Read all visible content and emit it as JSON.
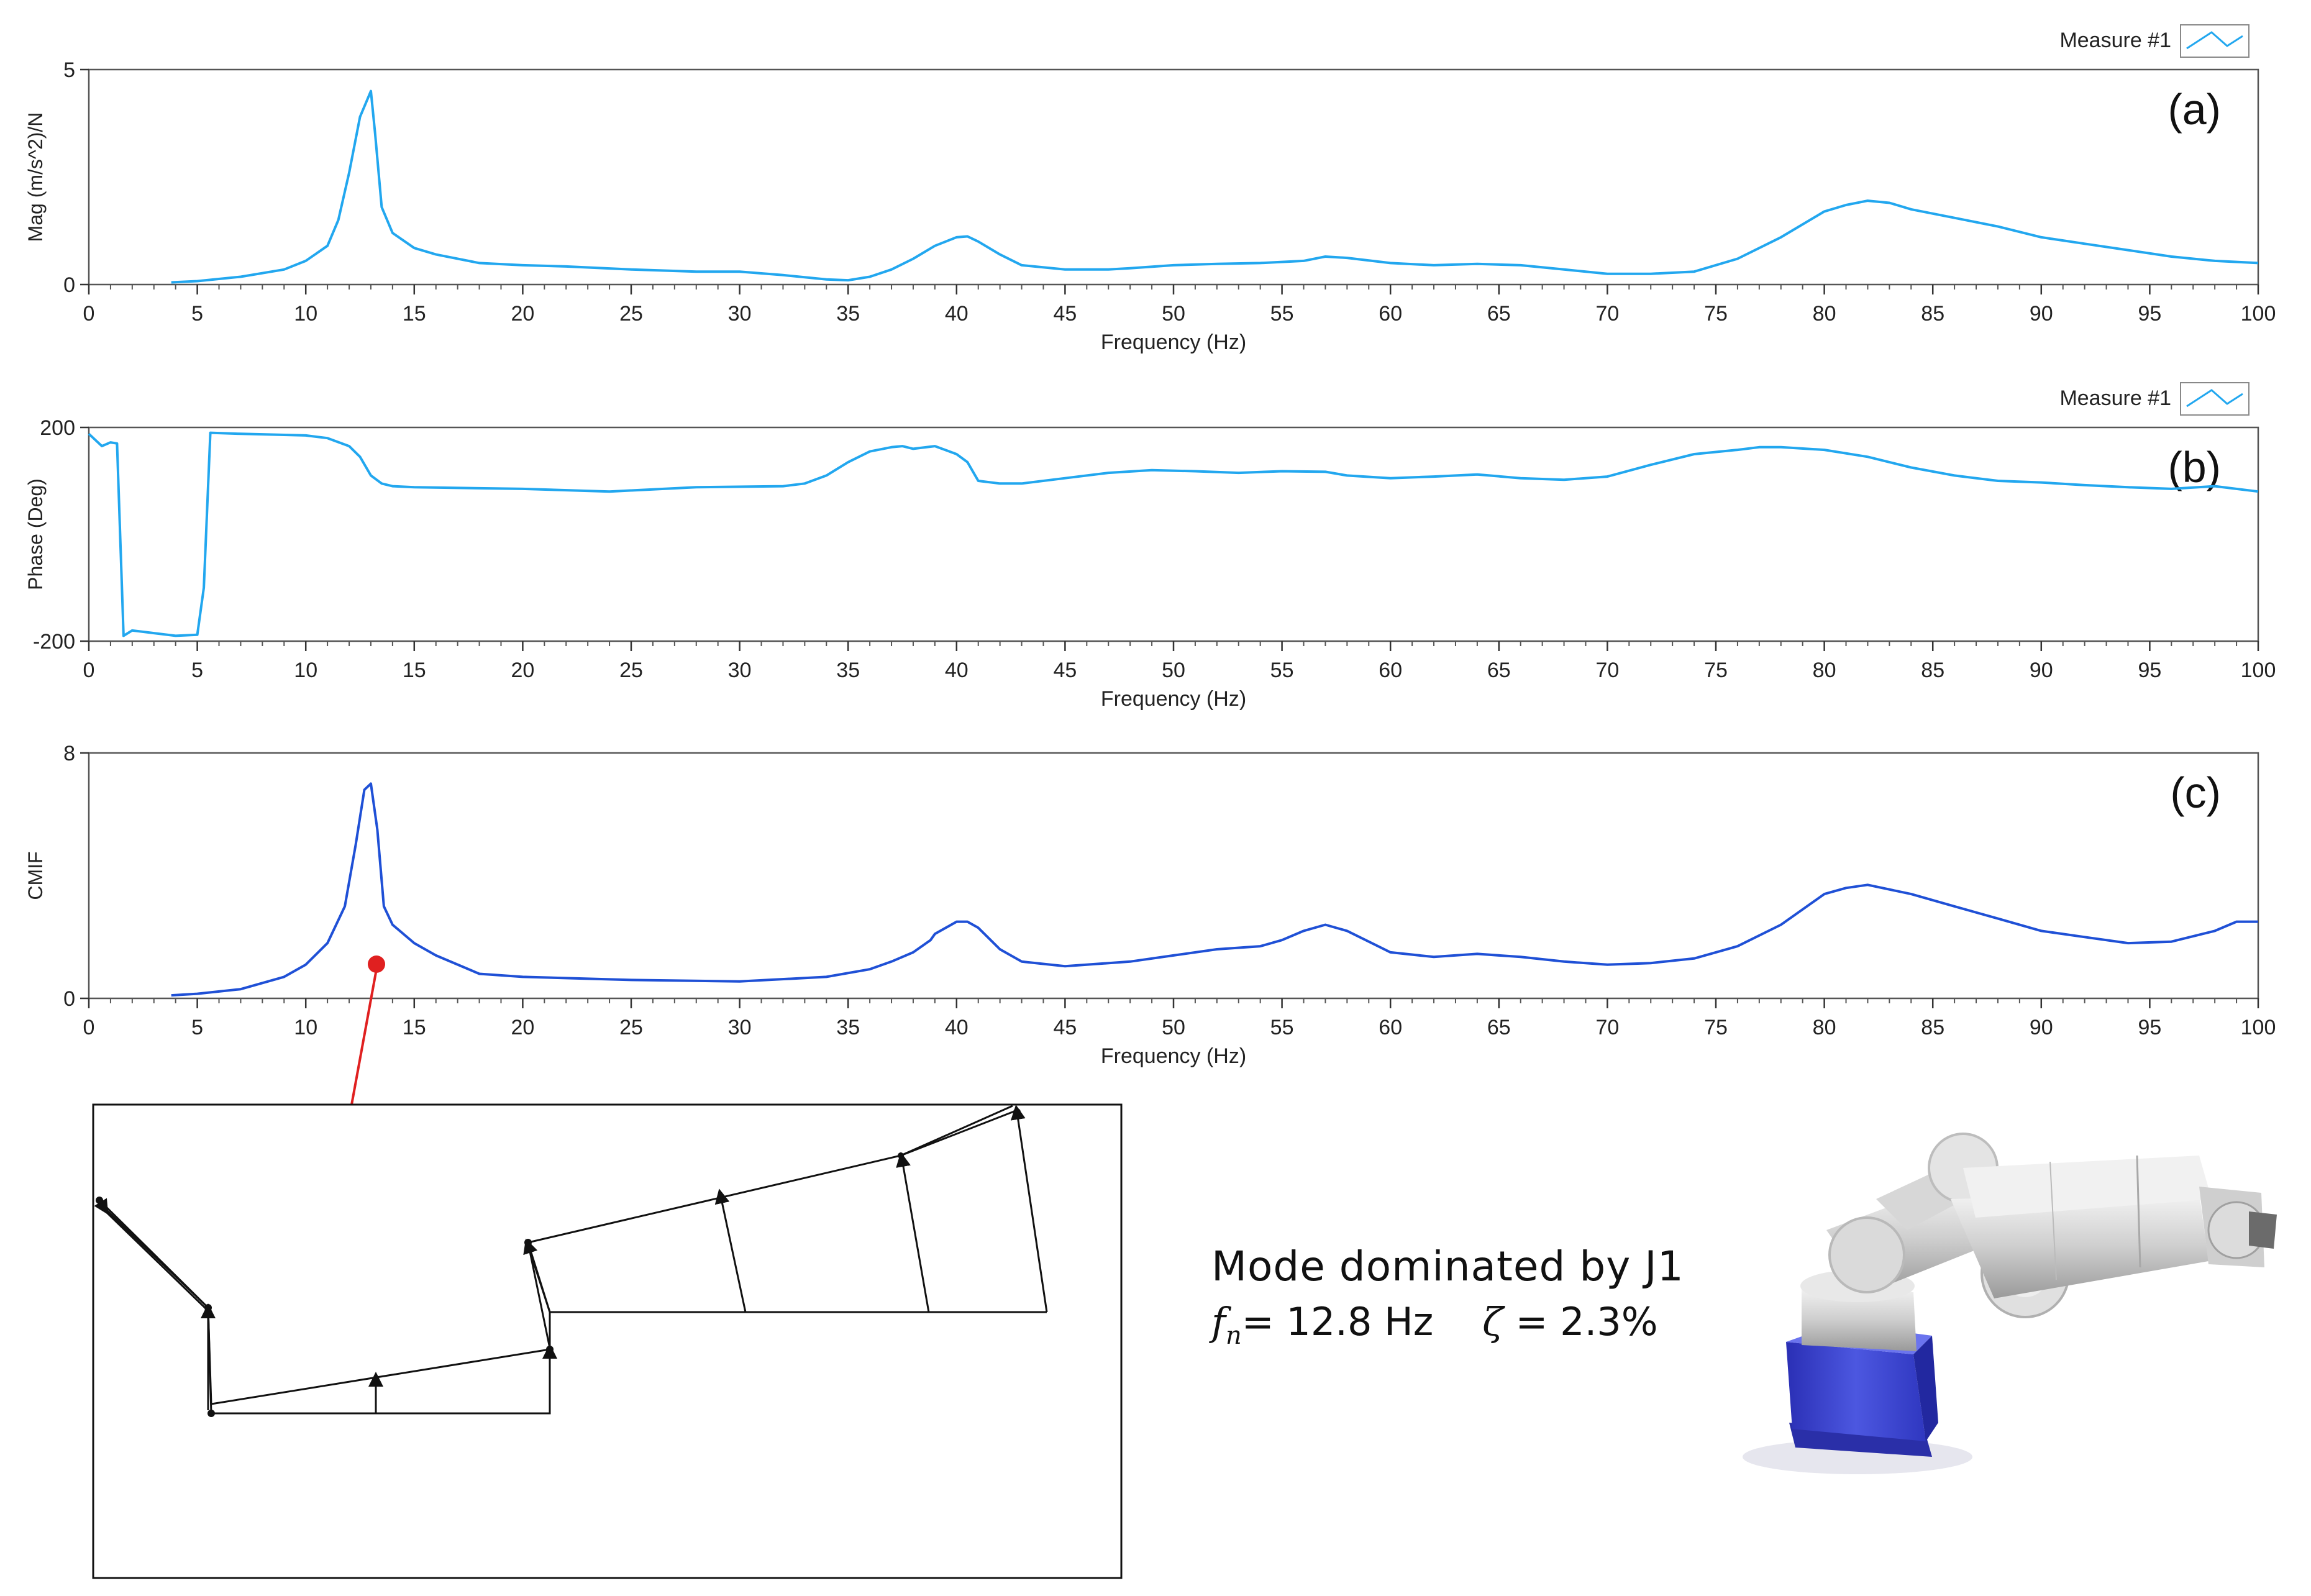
{
  "chart_data": [
    {
      "type": "line",
      "panel_label": "(a)",
      "xlabel": "Frequency (Hz)",
      "ylabel": "Mag  (m/s^2)/N",
      "xlim": [
        0,
        100
      ],
      "ylim": [
        0,
        5
      ],
      "x_ticks": [
        "0",
        "5",
        "10",
        "15",
        "20",
        "25",
        "30",
        "35",
        "40",
        "45",
        "50",
        "55",
        "60",
        "65",
        "70",
        "75",
        "80",
        "85",
        "90",
        "95",
        "100"
      ],
      "y_ticks": [
        "0",
        "5"
      ],
      "legend": {
        "label": "Measure #1",
        "position": "top-right"
      },
      "color": "#22a7ef",
      "series": [
        {
          "name": "Measure #1",
          "x": [
            3.8,
            5,
            7,
            9,
            10,
            11,
            11.5,
            12,
            12.5,
            13,
            13.2,
            13.5,
            14,
            15,
            16,
            18,
            20,
            22,
            25,
            28,
            30,
            32,
            34,
            35,
            36,
            37,
            38,
            39,
            40,
            40.5,
            41,
            42,
            43,
            45,
            47,
            48,
            50,
            52,
            54,
            56,
            57,
            58,
            60,
            62,
            64,
            66,
            68,
            70,
            72,
            74,
            76,
            78,
            80,
            81,
            82,
            83,
            84,
            86,
            88,
            90,
            92,
            94,
            96,
            98,
            100
          ],
          "y": [
            0.05,
            0.08,
            0.18,
            0.35,
            0.55,
            0.9,
            1.5,
            2.6,
            3.9,
            4.5,
            3.5,
            1.8,
            1.2,
            0.85,
            0.7,
            0.5,
            0.45,
            0.42,
            0.35,
            0.3,
            0.3,
            0.22,
            0.12,
            0.1,
            0.18,
            0.35,
            0.6,
            0.9,
            1.1,
            1.12,
            1.0,
            0.7,
            0.45,
            0.35,
            0.35,
            0.38,
            0.45,
            0.48,
            0.5,
            0.55,
            0.65,
            0.62,
            0.5,
            0.45,
            0.48,
            0.45,
            0.35,
            0.25,
            0.25,
            0.3,
            0.6,
            1.1,
            1.7,
            1.85,
            1.95,
            1.9,
            1.75,
            1.55,
            1.35,
            1.1,
            0.95,
            0.8,
            0.65,
            0.55,
            0.5
          ]
        }
      ]
    },
    {
      "type": "line",
      "panel_label": "(b)",
      "xlabel": "Frequency (Hz)",
      "ylabel": "Phase (Deg)",
      "xlim": [
        0,
        100
      ],
      "ylim": [
        -200,
        200
      ],
      "x_ticks": [
        "0",
        "5",
        "10",
        "15",
        "20",
        "25",
        "30",
        "35",
        "40",
        "45",
        "50",
        "55",
        "60",
        "65",
        "70",
        "75",
        "80",
        "85",
        "90",
        "95",
        "100"
      ],
      "y_ticks": [
        "-200",
        "200"
      ],
      "legend": {
        "label": "Measure #1",
        "position": "top-right"
      },
      "color": "#22a7ef",
      "series": [
        {
          "name": "Measure #1",
          "x": [
            0,
            0.6,
            1.0,
            1.3,
            1.6,
            2,
            3,
            4,
            5,
            5.3,
            5.6,
            7,
            10,
            11,
            12,
            12.5,
            13,
            13.5,
            14,
            15,
            20,
            24,
            28,
            32,
            33,
            34,
            35,
            36,
            37,
            37.5,
            38,
            39,
            40,
            40.5,
            41,
            42,
            43,
            45,
            47,
            49,
            51,
            53,
            55,
            57,
            58,
            60,
            62,
            64,
            66,
            68,
            70,
            72,
            74,
            76,
            77,
            78,
            80,
            82,
            84,
            86,
            88,
            90,
            92,
            94,
            96,
            98,
            100
          ],
          "y": [
            188,
            165,
            172,
            170,
            -190,
            -180,
            -185,
            -190,
            -188,
            -100,
            190,
            188,
            185,
            180,
            165,
            145,
            110,
            95,
            90,
            88,
            85,
            80,
            88,
            90,
            95,
            110,
            135,
            155,
            163,
            165,
            160,
            165,
            150,
            135,
            100,
            95,
            95,
            105,
            115,
            120,
            118,
            115,
            118,
            117,
            110,
            105,
            108,
            112,
            105,
            102,
            108,
            130,
            150,
            158,
            163,
            163,
            158,
            145,
            125,
            110,
            100,
            97,
            92,
            88,
            85,
            90,
            80
          ]
        }
      ]
    },
    {
      "type": "line",
      "panel_label": "(c)",
      "xlabel": "Frequency (Hz)",
      "ylabel": "CMIF",
      "xlim": [
        0,
        100
      ],
      "ylim": [
        0,
        8
      ],
      "x_ticks": [
        "0",
        "5",
        "10",
        "15",
        "20",
        "25",
        "30",
        "35",
        "40",
        "45",
        "50",
        "55",
        "60",
        "65",
        "70",
        "75",
        "80",
        "85",
        "90",
        "95",
        "100"
      ],
      "y_ticks": [
        "0",
        "8"
      ],
      "color": "#1f50d6",
      "series": [
        {
          "name": "CMIF",
          "x": [
            3.8,
            5,
            7,
            9,
            10,
            11,
            11.8,
            12.3,
            12.7,
            13,
            13.3,
            13.6,
            14,
            15,
            16,
            18,
            20,
            25,
            30,
            34,
            36,
            37,
            38,
            38.8,
            39,
            40,
            40.5,
            41,
            42,
            43,
            45,
            48,
            50,
            52,
            54,
            55,
            56,
            57,
            58,
            60,
            62,
            64,
            66,
            68,
            70,
            72,
            74,
            76,
            78,
            80,
            81,
            82,
            84,
            86,
            88,
            90,
            92,
            94,
            96,
            98,
            99,
            100
          ],
          "y": [
            0.1,
            0.15,
            0.3,
            0.7,
            1.1,
            1.8,
            3.0,
            5.0,
            6.8,
            7.0,
            5.5,
            3.0,
            2.4,
            1.8,
            1.4,
            0.8,
            0.7,
            0.6,
            0.55,
            0.7,
            0.95,
            1.2,
            1.5,
            1.9,
            2.1,
            2.5,
            2.5,
            2.3,
            1.6,
            1.2,
            1.05,
            1.2,
            1.4,
            1.6,
            1.7,
            1.9,
            2.2,
            2.4,
            2.2,
            1.5,
            1.35,
            1.45,
            1.35,
            1.2,
            1.1,
            1.15,
            1.3,
            1.7,
            2.4,
            3.4,
            3.6,
            3.7,
            3.4,
            3.0,
            2.6,
            2.2,
            2.0,
            1.8,
            1.85,
            2.2,
            2.5,
            2.5
          ]
        }
      ]
    }
  ],
  "mode_annotation": {
    "title": "Mode dominated  by J1",
    "fn_symbol": "f",
    "fn_subscript": "n",
    "fn_value": "= 12.8 Hz",
    "zeta_symbol": "ζ",
    "zeta_value": "= 2.3%"
  }
}
